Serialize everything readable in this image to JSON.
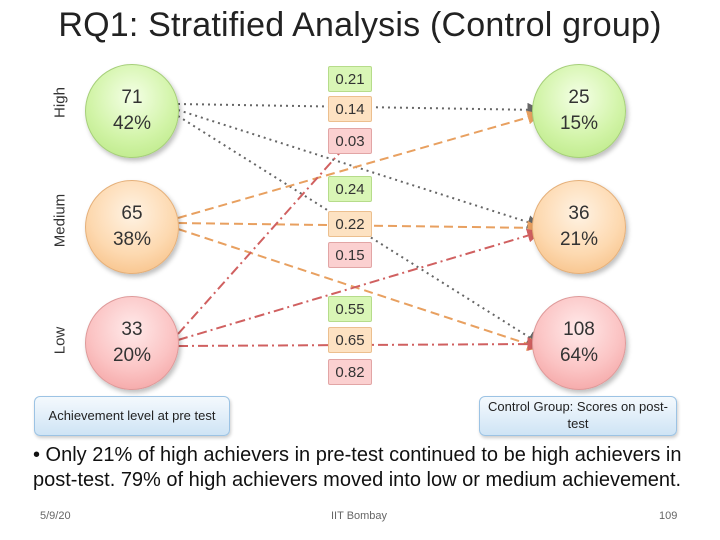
{
  "slide": {
    "title": "RQ1: Stratified Analysis (Control group)",
    "row_labels": {
      "high": "High",
      "medium": "Medium",
      "low": "Low"
    },
    "pre_test": {
      "high": {
        "count": "71",
        "pct": "42%"
      },
      "medium": {
        "count": "65",
        "pct": "38%"
      },
      "low": {
        "count": "33",
        "pct": "20%"
      }
    },
    "post_test": {
      "high": {
        "count": "25",
        "pct": "15%"
      },
      "medium": {
        "count": "36",
        "pct": "21%"
      },
      "low": {
        "count": "108",
        "pct": "64%"
      }
    },
    "transition_probs": {
      "high_group": [
        "0.21",
        "0.14",
        "0.03"
      ],
      "medium_group": [
        "0.24",
        "0.22",
        "0.15"
      ],
      "low_group": [
        "0.55",
        "0.65",
        "0.82"
      ]
    },
    "legend_left": "Achievement level at pre test",
    "legend_right": "Control Group: Scores on post-test",
    "bullet_text": "• Only 21% of high achievers in pre-test continued to be high achievers in post-test. 79% of high achievers moved into low or medium achievement.",
    "footer_date": "5/9/20",
    "footer_center": "IIT Bombay",
    "page_number": "109"
  },
  "colors": {
    "high": "#a8d880",
    "medium": "#e8a060",
    "low": "#d06060",
    "dotted": "#666666"
  }
}
